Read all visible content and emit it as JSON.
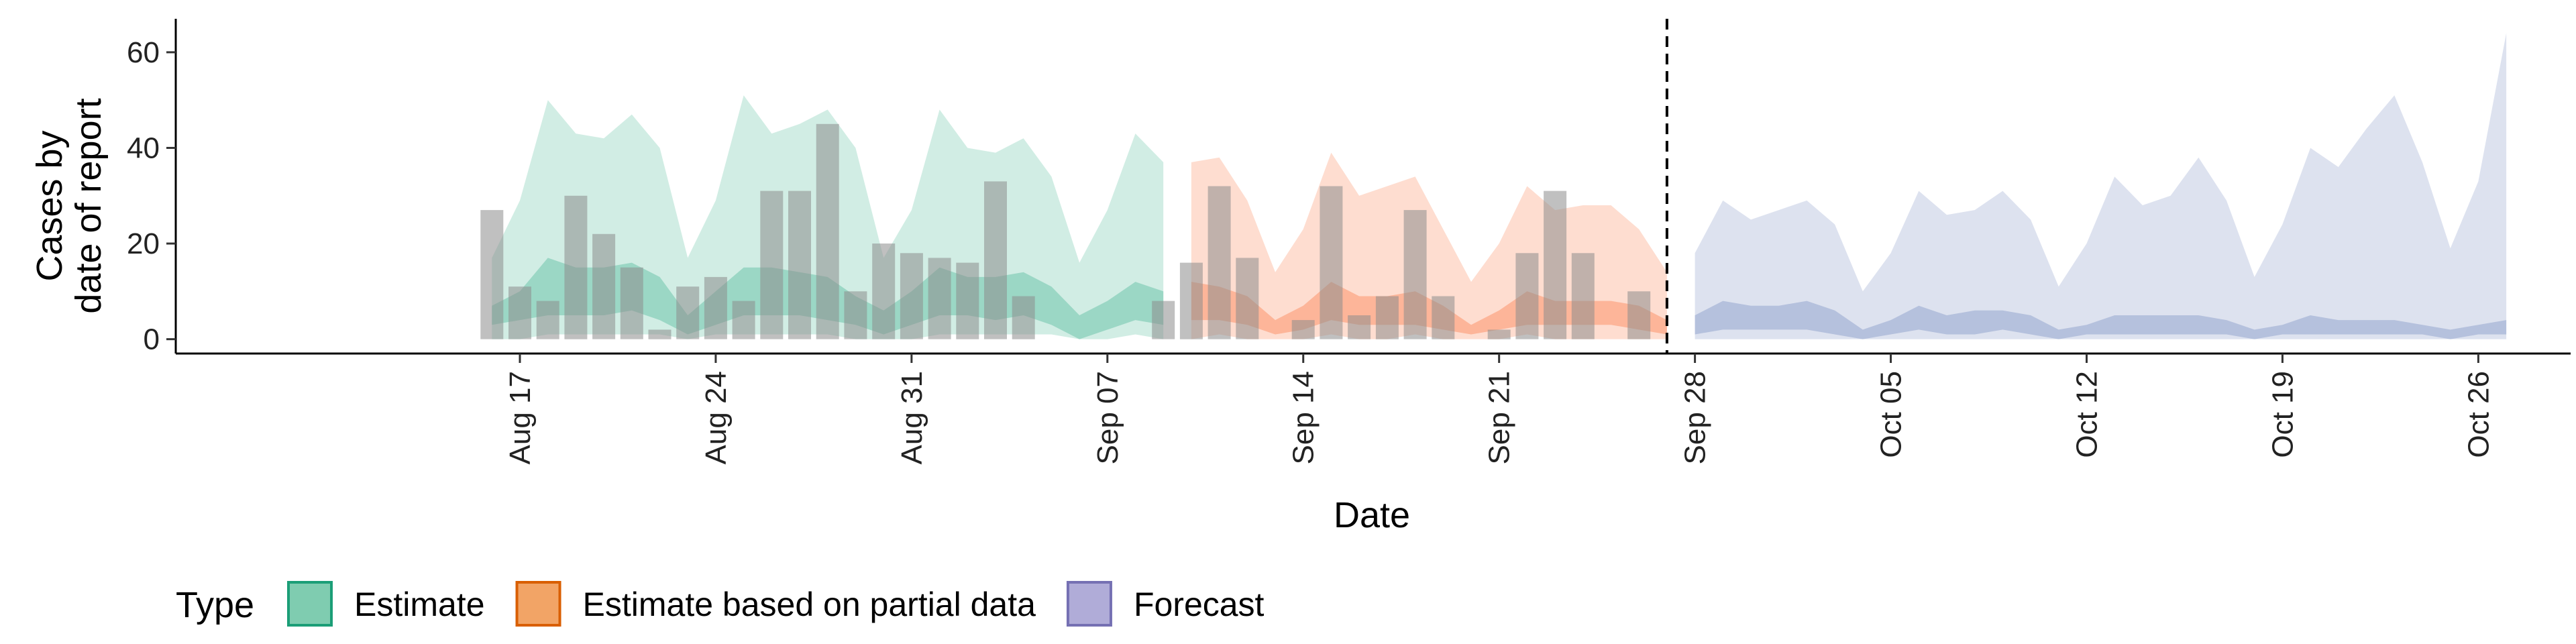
{
  "chart_data": {
    "type": "area",
    "xlabel": "Date",
    "ylabel_lines": [
      "Cases by",
      "date of report"
    ],
    "ylim": [
      -3,
      67
    ],
    "yticks": [
      0,
      20,
      40,
      60
    ],
    "x_start": "2020-08-13",
    "xlim_days": [
      -8.3,
      77.3
    ],
    "x_ticks": [
      {
        "day": 4,
        "label": "Aug 17"
      },
      {
        "day": 11,
        "label": "Aug 24"
      },
      {
        "day": 18,
        "label": "Aug 31"
      },
      {
        "day": 25,
        "label": "Sep 07"
      },
      {
        "day": 32,
        "label": "Sep 14"
      },
      {
        "day": 39,
        "label": "Sep 21"
      },
      {
        "day": 46,
        "label": "Sep 28"
      },
      {
        "day": 53,
        "label": "Oct 05"
      },
      {
        "day": 60,
        "label": "Oct 12"
      },
      {
        "day": 67,
        "label": "Oct 19"
      },
      {
        "day": 74,
        "label": "Oct 26"
      }
    ],
    "forecast_line_day": 45,
    "reported_cases": {
      "start_day": 3,
      "values": [
        27,
        11,
        8,
        30,
        22,
        15,
        2,
        11,
        13,
        8,
        31,
        31,
        45,
        10,
        20,
        18,
        17,
        16,
        33,
        9,
        0,
        0,
        0,
        0,
        8,
        16,
        32,
        17,
        0,
        4,
        32,
        5,
        9,
        27,
        9,
        0,
        2,
        18,
        31,
        18,
        0,
        10
      ]
    },
    "series": [
      {
        "name": "Estimate",
        "color": "#66c2a5",
        "start_day": 3,
        "upper90": [
          17,
          29,
          50,
          43,
          42,
          47,
          40,
          17,
          29,
          51,
          43,
          45,
          48,
          40,
          17,
          27,
          48,
          40,
          39,
          42,
          34,
          16,
          27,
          43,
          37
        ],
        "upper50": [
          7,
          10,
          17,
          15,
          15,
          16,
          13,
          5,
          10,
          15,
          15,
          14,
          13,
          9,
          6,
          10,
          15,
          13,
          13,
          14,
          11,
          5,
          8,
          12,
          10
        ],
        "lower50": [
          3,
          4,
          5,
          5,
          5,
          6,
          4,
          1,
          3,
          5,
          5,
          5,
          4,
          3,
          1,
          3,
          5,
          5,
          4,
          5,
          3,
          0,
          2,
          4,
          3
        ],
        "lower90": [
          0,
          0,
          1,
          1,
          1,
          1,
          1,
          0,
          1,
          1,
          1,
          1,
          1,
          0,
          0,
          0,
          1,
          1,
          1,
          1,
          1,
          0,
          0,
          1,
          0
        ]
      },
      {
        "name": "Estimate based on partial data",
        "color": "#fc8d62",
        "start_day": 28,
        "upper90": [
          37,
          38,
          29,
          14,
          23,
          39,
          30,
          32,
          34,
          23,
          12,
          20,
          32,
          27,
          28,
          28,
          23,
          14
        ],
        "upper50": [
          12,
          11,
          9,
          4,
          7,
          12,
          9,
          9,
          10,
          7,
          3,
          6,
          10,
          8,
          8,
          8,
          7,
          4
        ],
        "lower50": [
          4,
          4,
          3,
          1,
          2,
          4,
          3,
          3,
          3,
          2,
          1,
          2,
          3,
          3,
          3,
          3,
          2,
          1
        ],
        "lower90": [
          0,
          1,
          0,
          0,
          0,
          1,
          0,
          0,
          1,
          0,
          0,
          0,
          1,
          0,
          0,
          0,
          0,
          0
        ]
      },
      {
        "name": "Forecast",
        "color": "#8da0cb",
        "start_day": 46,
        "upper90": [
          18,
          29,
          25,
          27,
          29,
          24,
          10,
          18,
          31,
          26,
          27,
          31,
          25,
          11,
          20,
          34,
          28,
          30,
          38,
          29,
          13,
          24,
          40,
          36,
          44,
          51,
          37,
          19,
          33,
          64
        ],
        "upper50": [
          5,
          8,
          7,
          7,
          8,
          6,
          2,
          4,
          7,
          5,
          6,
          6,
          5,
          2,
          3,
          5,
          5,
          5,
          5,
          4,
          2,
          3,
          5,
          4,
          4,
          4,
          3,
          2,
          3,
          4
        ],
        "lower50": [
          1,
          2,
          2,
          2,
          2,
          1,
          0,
          1,
          2,
          1,
          1,
          2,
          1,
          0,
          1,
          1,
          1,
          1,
          1,
          1,
          0,
          1,
          1,
          1,
          1,
          1,
          1,
          0,
          1,
          1
        ],
        "lower90": [
          0,
          0,
          0,
          0,
          0,
          0,
          0,
          0,
          0,
          0,
          0,
          0,
          0,
          0,
          0,
          0,
          0,
          0,
          0,
          0,
          0,
          0,
          0,
          0,
          0,
          0,
          0,
          0,
          0,
          0
        ]
      }
    ],
    "legend": {
      "title": "Type",
      "position": "bottom",
      "items": [
        {
          "label": "Estimate",
          "fill": "#7fccb0",
          "stroke": "#1b9e77"
        },
        {
          "label": "Estimate based on partial data",
          "fill": "#f2a466",
          "stroke": "#d95f02"
        },
        {
          "label": "Forecast",
          "fill": "#b0acd8",
          "stroke": "#7570b3"
        }
      ]
    },
    "grid": false
  }
}
